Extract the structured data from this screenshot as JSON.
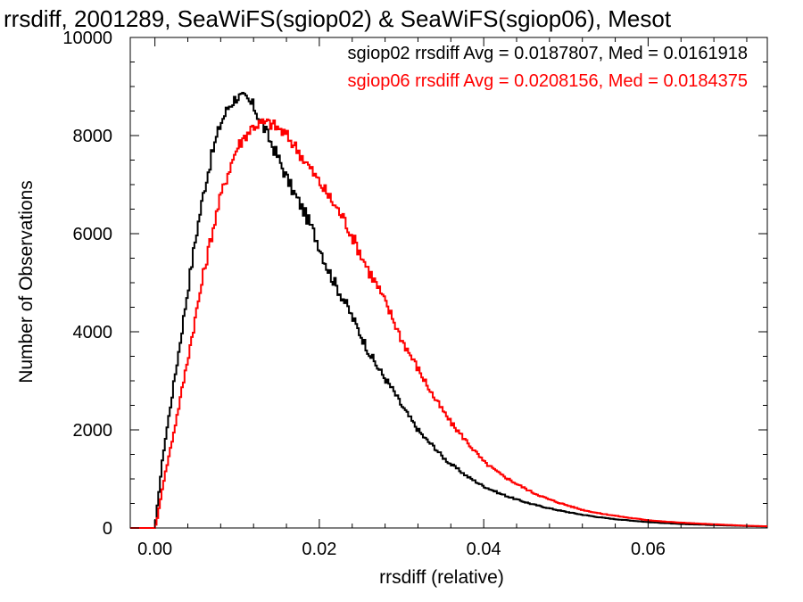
{
  "chart_data": {
    "type": "line",
    "step": true,
    "title": "rrsdiff, 2001289, SeaWiFS(sgiop02) & SeaWiFS(sgiop06), Mesot",
    "xlabel": "rrsdiff (relative)",
    "ylabel": "Number of Observations",
    "xlim": [
      -0.003,
      0.0745
    ],
    "ylim": [
      0,
      10000
    ],
    "x_ticks": [
      0.0,
      0.02,
      0.04,
      0.06
    ],
    "x_tick_labels": [
      "0.00",
      "0.02",
      "0.04",
      "0.06"
    ],
    "y_ticks": [
      0,
      2000,
      4000,
      6000,
      8000,
      10000
    ],
    "y_tick_labels": [
      "0",
      "2000",
      "4000",
      "6000",
      "8000",
      "10000"
    ],
    "grid": false,
    "legend_position": "top-right",
    "series": [
      {
        "name": "sgiop02",
        "color": "#000000",
        "legend": "sgiop02 rrsdiff Avg = 0.0187807, Med = 0.0161918",
        "x": [
          -0.003,
          0.0,
          0.0002,
          0.001,
          0.002,
          0.003,
          0.004,
          0.005,
          0.006,
          0.007,
          0.008,
          0.009,
          0.01,
          0.011,
          0.012,
          0.013,
          0.014,
          0.015,
          0.016,
          0.017,
          0.018,
          0.019,
          0.02,
          0.021,
          0.022,
          0.023,
          0.024,
          0.025,
          0.026,
          0.027,
          0.028,
          0.029,
          0.03,
          0.031,
          0.032,
          0.033,
          0.034,
          0.035,
          0.036,
          0.037,
          0.038,
          0.039,
          0.04,
          0.042,
          0.044,
          0.046,
          0.048,
          0.05,
          0.052,
          0.054,
          0.056,
          0.058,
          0.06,
          0.062,
          0.064,
          0.066,
          0.068,
          0.07,
          0.072,
          0.0745
        ],
        "values": [
          0,
          0,
          300,
          1500,
          2600,
          3700,
          4850,
          5950,
          6900,
          7650,
          8250,
          8600,
          8800,
          8750,
          8600,
          8250,
          7900,
          7550,
          7150,
          6800,
          6500,
          6150,
          5750,
          5300,
          4950,
          4650,
          4300,
          3950,
          3600,
          3300,
          3050,
          2800,
          2500,
          2250,
          2000,
          1800,
          1650,
          1450,
          1300,
          1180,
          1050,
          950,
          850,
          700,
          580,
          480,
          400,
          330,
          270,
          220,
          180,
          150,
          120,
          100,
          80,
          70,
          60,
          50,
          40,
          30
        ]
      },
      {
        "name": "sgiop06",
        "color": "#ff0000",
        "legend": "sgiop06 rrsdiff Avg = 0.0208156, Med = 0.0184375",
        "x": [
          -0.003,
          0.0,
          0.0003,
          0.001,
          0.002,
          0.003,
          0.004,
          0.005,
          0.006,
          0.007,
          0.008,
          0.009,
          0.01,
          0.011,
          0.012,
          0.013,
          0.014,
          0.015,
          0.016,
          0.017,
          0.018,
          0.019,
          0.02,
          0.021,
          0.022,
          0.023,
          0.024,
          0.025,
          0.026,
          0.027,
          0.028,
          0.029,
          0.03,
          0.031,
          0.032,
          0.033,
          0.034,
          0.035,
          0.036,
          0.037,
          0.038,
          0.039,
          0.04,
          0.042,
          0.044,
          0.046,
          0.048,
          0.05,
          0.052,
          0.054,
          0.056,
          0.058,
          0.06,
          0.062,
          0.064,
          0.066,
          0.068,
          0.07,
          0.072,
          0.0745
        ],
        "values": [
          0,
          0,
          200,
          900,
          1700,
          2550,
          3450,
          4350,
          5250,
          6050,
          6750,
          7300,
          7750,
          8000,
          8200,
          8250,
          8250,
          8150,
          8000,
          7800,
          7550,
          7300,
          7050,
          6800,
          6550,
          6300,
          5950,
          5600,
          5250,
          4950,
          4600,
          4250,
          3850,
          3550,
          3250,
          2950,
          2650,
          2400,
          2150,
          1950,
          1750,
          1550,
          1350,
          1100,
          900,
          720,
          580,
          470,
          370,
          300,
          250,
          200,
          160,
          130,
          110,
          90,
          75,
          60,
          45,
          35
        ]
      }
    ]
  }
}
